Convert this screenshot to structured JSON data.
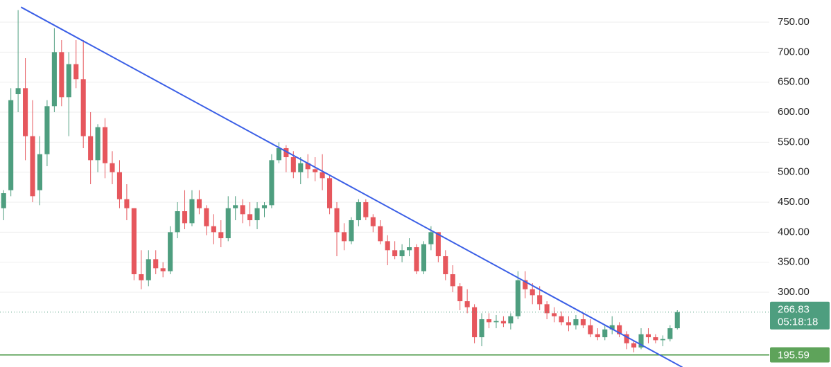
{
  "chart_data": {
    "type": "candlestick",
    "open": [
      440,
      470,
      630,
      640,
      560,
      470,
      530,
      610,
      700,
      625,
      680,
      655,
      560,
      520,
      575,
      515,
      500,
      455,
      440,
      330,
      320,
      355,
      340,
      335,
      400,
      435,
      415,
      455,
      440,
      410,
      400,
      390,
      440,
      445,
      430,
      420,
      440,
      445,
      520,
      540,
      525,
      500,
      515,
      505,
      500,
      490,
      440,
      400,
      385,
      420,
      450,
      425,
      410,
      385,
      370,
      360,
      370,
      375,
      335,
      380,
      400,
      360,
      330,
      310,
      285,
      275,
      225,
      255,
      250,
      252,
      248,
      260,
      320,
      305,
      295,
      280,
      265,
      260,
      250,
      245,
      255,
      245,
      230,
      225,
      238,
      245,
      230,
      215,
      208,
      230,
      225,
      220,
      222,
      240
    ],
    "high": [
      470,
      640,
      770,
      690,
      620,
      560,
      620,
      740,
      720,
      700,
      720,
      720,
      600,
      580,
      590,
      535,
      520,
      480,
      440,
      370,
      370,
      370,
      350,
      410,
      450,
      470,
      470,
      470,
      445,
      430,
      420,
      460,
      460,
      455,
      450,
      450,
      450,
      530,
      550,
      545,
      535,
      525,
      530,
      525,
      530,
      495,
      450,
      415,
      425,
      455,
      455,
      430,
      420,
      395,
      385,
      380,
      390,
      380,
      385,
      410,
      400,
      370,
      345,
      315,
      305,
      280,
      265,
      265,
      262,
      260,
      265,
      335,
      335,
      315,
      310,
      285,
      275,
      268,
      260,
      262,
      265,
      255,
      240,
      245,
      260,
      250,
      235,
      220,
      240,
      240,
      230,
      228,
      245,
      270
    ],
    "low": [
      420,
      460,
      600,
      520,
      450,
      445,
      510,
      600,
      610,
      560,
      640,
      540,
      480,
      500,
      490,
      480,
      440,
      420,
      320,
      305,
      310,
      330,
      325,
      330,
      390,
      405,
      410,
      430,
      395,
      380,
      375,
      385,
      420,
      415,
      410,
      405,
      425,
      440,
      515,
      500,
      490,
      480,
      490,
      485,
      470,
      430,
      360,
      370,
      380,
      410,
      420,
      400,
      380,
      345,
      355,
      350,
      360,
      330,
      330,
      370,
      350,
      320,
      300,
      270,
      265,
      215,
      210,
      240,
      240,
      242,
      238,
      255,
      290,
      280,
      270,
      255,
      250,
      245,
      235,
      238,
      240,
      225,
      220,
      220,
      230,
      225,
      205,
      200,
      205,
      215,
      215,
      210,
      218,
      238
    ],
    "close": [
      465,
      620,
      640,
      560,
      460,
      530,
      610,
      700,
      625,
      680,
      655,
      560,
      520,
      575,
      515,
      500,
      455,
      440,
      330,
      320,
      355,
      340,
      335,
      400,
      435,
      415,
      455,
      440,
      410,
      400,
      390,
      440,
      445,
      430,
      420,
      440,
      445,
      520,
      540,
      525,
      500,
      515,
      505,
      500,
      490,
      440,
      400,
      385,
      420,
      450,
      425,
      410,
      385,
      370,
      360,
      370,
      375,
      335,
      380,
      400,
      360,
      330,
      310,
      285,
      275,
      225,
      255,
      250,
      252,
      248,
      260,
      320,
      305,
      295,
      280,
      265,
      260,
      250,
      245,
      255,
      245,
      230,
      225,
      238,
      245,
      230,
      215,
      208,
      230,
      225,
      220,
      222,
      240,
      266.83
    ],
    "up_color": "#4e9e7f",
    "down_color": "#e6575d",
    "xlim": [
      -0.5,
      105.7
    ],
    "ylim": [
      175.4,
      786.9
    ],
    "yticks": [
      {
        "value": 300,
        "label": "300.00"
      },
      {
        "value": 350,
        "label": "350.00"
      },
      {
        "value": 400,
        "label": "400.00"
      },
      {
        "value": 450,
        "label": "450.00"
      },
      {
        "value": 500,
        "label": "500.00"
      },
      {
        "value": 550,
        "label": "550.00"
      },
      {
        "value": 600,
        "label": "600.00"
      },
      {
        "value": 650,
        "label": "650.00"
      },
      {
        "value": 700,
        "label": "700.00"
      },
      {
        "value": 750,
        "label": "750.00"
      }
    ],
    "grid": true,
    "trendline": {
      "x": [
        2.4,
        93.7
      ],
      "y": [
        775,
        175
      ],
      "color": "#3b5fe6"
    },
    "support_line": {
      "value": 195.59,
      "color": "#5ea35a"
    },
    "last_price": {
      "value": 266.83,
      "countdown": "05:18:18",
      "color": "#4e9e7f"
    }
  }
}
